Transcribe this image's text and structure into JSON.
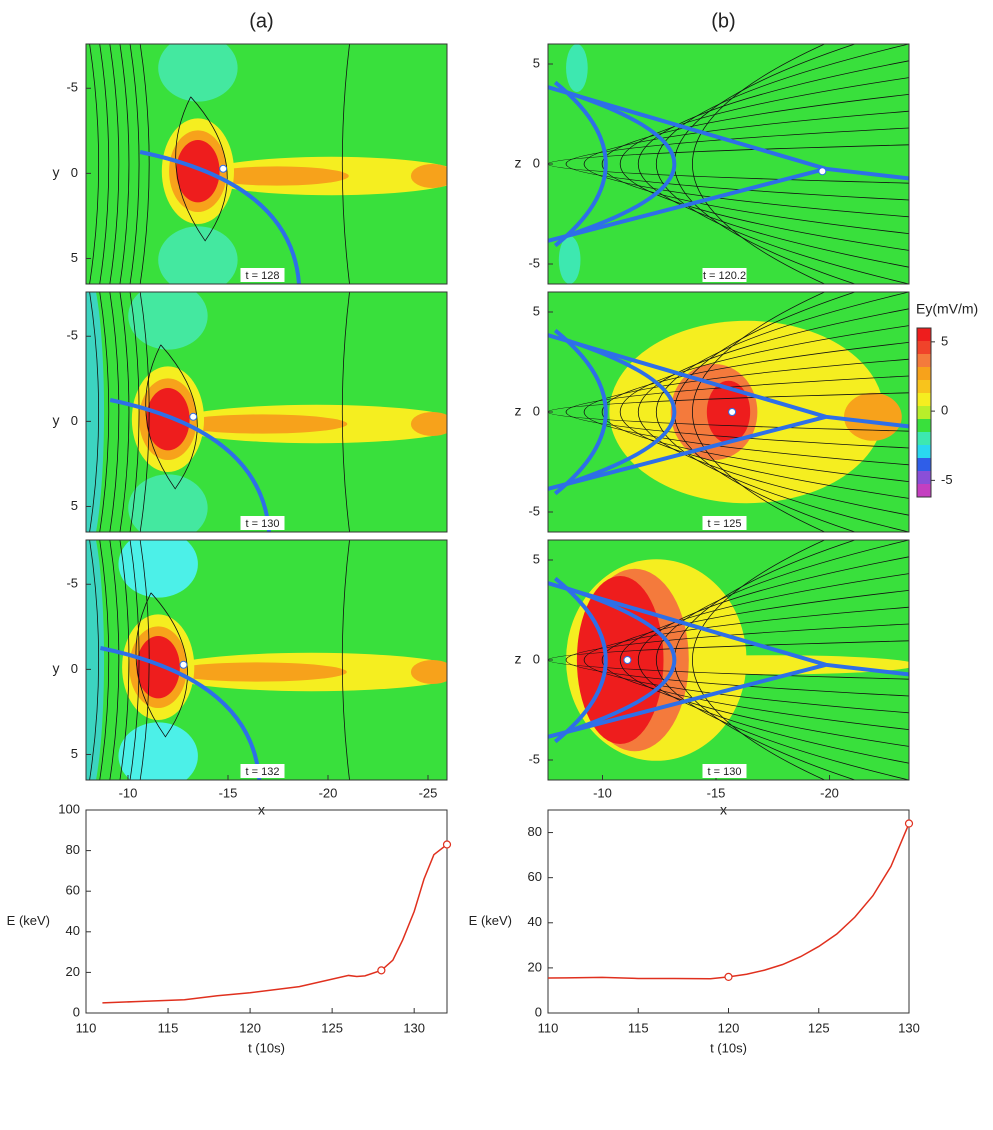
{
  "chart_data": [
    {
      "type": "contour",
      "title": "(a)",
      "ylabel": "y",
      "xlim": [
        -7.9,
        -25.95
      ],
      "ylim": [
        6.5,
        -7.6
      ],
      "yticks": [
        -5,
        0,
        5
      ],
      "annotation": "t = 128"
    },
    {
      "type": "contour",
      "ylabel": "y",
      "xlim": [
        -7.9,
        -25.95
      ],
      "ylim": [
        6.5,
        -7.6
      ],
      "yticks": [
        -5,
        0,
        5
      ],
      "annotation": "t = 130"
    },
    {
      "type": "contour",
      "ylabel": "y",
      "xlabel": "x",
      "xlim": [
        -7.9,
        -25.95
      ],
      "ylim": [
        6.5,
        -7.6
      ],
      "xticks": [
        -10,
        -15,
        -20,
        -25
      ],
      "yticks": [
        -5,
        0,
        5
      ],
      "annotation": "t = 132"
    },
    {
      "type": "contour",
      "title": "(b)",
      "ylabel": "z",
      "xlim": [
        -7.6,
        -23.5
      ],
      "ylim": [
        -6,
        6
      ],
      "yticks": [
        5,
        0,
        -5
      ],
      "annotation": "t = 120.2"
    },
    {
      "type": "contour",
      "ylabel": "z",
      "xlim": [
        -7.6,
        -23.5
      ],
      "ylim": [
        -6,
        6
      ],
      "yticks": [
        5,
        0,
        -5
      ],
      "annotation": "t = 125"
    },
    {
      "type": "contour",
      "ylabel": "z",
      "xlabel": "x",
      "xlim": [
        -7.6,
        -23.5
      ],
      "ylim": [
        -6,
        6
      ],
      "xticks": [
        -10,
        -15,
        -20
      ],
      "yticks": [
        5,
        0,
        -5
      ],
      "annotation": "t = 130"
    },
    {
      "type": "colorbar",
      "title": "Ey(mV/m)",
      "ylim": [
        -6.2,
        6
      ],
      "yticks": [
        5,
        0,
        -5
      ],
      "colors": [
        "#ee1d1d",
        "#f0432a",
        "#f47a3c",
        "#f7a21b",
        "#f8c41c",
        "#f5ee20",
        "#b9ee2a",
        "#39e03c",
        "#3de8b0",
        "#2ad8f0",
        "#2f5ee8",
        "#8a4fd8",
        "#c43fc0"
      ]
    },
    {
      "type": "line",
      "xlabel": "t (10s)",
      "ylabel": "E (keV)",
      "xlim": [
        110,
        132
      ],
      "ylim": [
        0,
        100
      ],
      "xticks": [
        110,
        115,
        120,
        125,
        130
      ],
      "yticks": [
        0,
        20,
        40,
        60,
        80,
        100
      ],
      "color": "#e0301e",
      "x": [
        111,
        113,
        116,
        118,
        120,
        123,
        126,
        126.5,
        127,
        128,
        128.7,
        129.3,
        130,
        130.6,
        131.2,
        132
      ],
      "values": [
        5,
        5.6,
        6.5,
        8.5,
        10,
        13,
        18.5,
        18,
        18.3,
        21,
        26,
        36,
        50,
        66,
        78,
        83
      ],
      "marker_x": [
        128,
        132
      ],
      "marker_values": [
        21,
        83
      ]
    },
    {
      "type": "line",
      "xlabel": "t (10s)",
      "ylabel": "E (keV)",
      "xlim": [
        110,
        130
      ],
      "ylim": [
        0,
        90
      ],
      "xticks": [
        110,
        115,
        120,
        125,
        130
      ],
      "yticks": [
        0,
        20,
        40,
        60,
        80
      ],
      "color": "#e0301e",
      "x": [
        110,
        111,
        113,
        115,
        117,
        119,
        120,
        121,
        122,
        123,
        124,
        125,
        126,
        127,
        128,
        129,
        130
      ],
      "values": [
        15.5,
        15.6,
        15.8,
        15.3,
        15.3,
        15.2,
        16,
        17.2,
        19,
        21.5,
        25,
        29.5,
        35,
        42.5,
        52,
        65,
        84
      ],
      "marker_x": [
        120,
        130
      ],
      "marker_values": [
        16,
        84
      ]
    }
  ]
}
